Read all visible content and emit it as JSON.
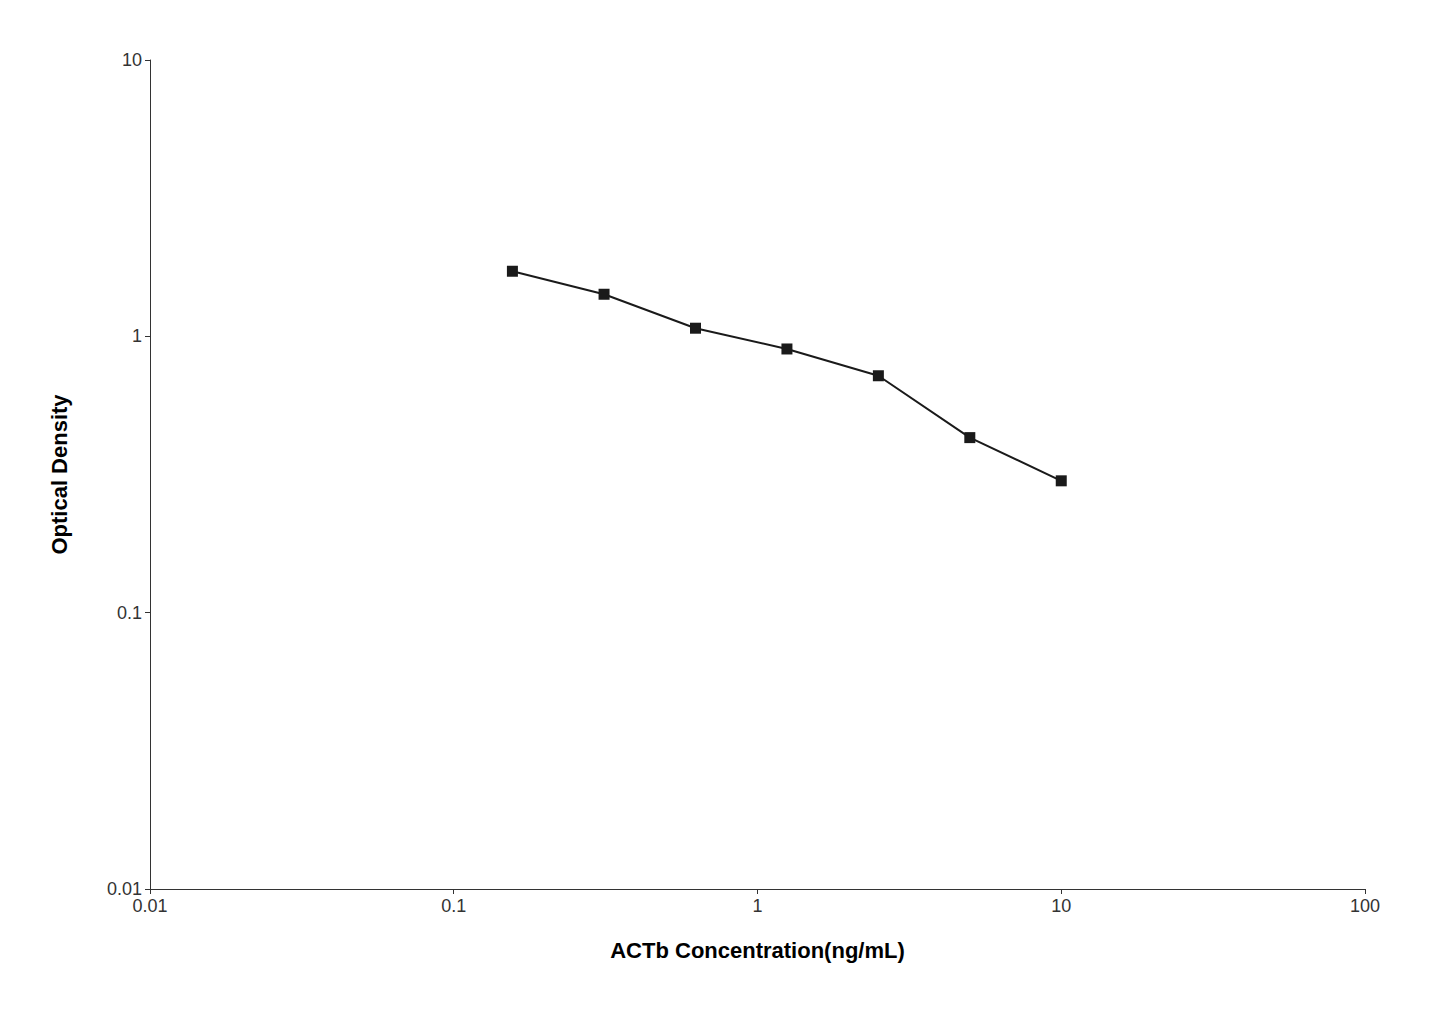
{
  "chart_data": {
    "type": "line",
    "x": [
      0.156,
      0.3125,
      0.625,
      1.25,
      2.5,
      5.0,
      10.0
    ],
    "values": [
      1.72,
      1.42,
      1.07,
      0.9,
      0.72,
      0.43,
      0.3
    ],
    "xlabel": "ACTb Concentration(ng/mL)",
    "ylabel": "Optical Density",
    "xlim": [
      0.01,
      100
    ],
    "ylim": [
      0.01,
      10
    ],
    "xticks": [
      0.01,
      0.1,
      1,
      10,
      100
    ],
    "yticks": [
      0.01,
      0.1,
      1,
      10
    ],
    "log": true,
    "grid": false,
    "color": "#1a1a1a",
    "marker": "square",
    "line_style": "solid"
  }
}
